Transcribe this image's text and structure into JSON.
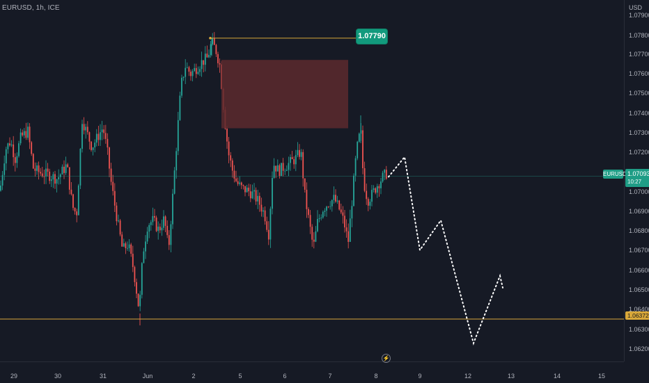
{
  "header": {
    "symbol_title": "EURUSD, 1h, ICE",
    "currency": "USD"
  },
  "price_axis": {
    "ticks": [
      "1.07900",
      "1.07800",
      "1.07700",
      "1.07600",
      "1.07500",
      "1.07400",
      "1.07300",
      "1.07200",
      "1.07000",
      "1.06900",
      "1.06800",
      "1.06700",
      "1.06600",
      "1.06500",
      "1.06400",
      "1.06300",
      "1.06200"
    ]
  },
  "time_axis": {
    "ticks": [
      "29",
      "30",
      "31",
      "Jun",
      "2",
      "5",
      "6",
      "7",
      "8",
      "9",
      "12",
      "13",
      "14",
      "15"
    ]
  },
  "labels": {
    "high_callout": "1.07790",
    "symbol_tag": "EURUSD",
    "last_price": "1.07093",
    "countdown": "10:27",
    "support_price": "1.06372"
  },
  "colors": {
    "background": "#161a25",
    "up_candle": "#26a69a",
    "down_candle": "#ef5350",
    "support_line": "#d9a83a",
    "supply_zone": "#5c2a2e",
    "projection": "#ffffff"
  },
  "icons": {
    "scroll_to_realtime": "lightning-icon"
  },
  "chart_data": {
    "type": "candlestick",
    "title": "EURUSD, 1h, ICE",
    "ylim": [
      1.0617,
      1.0795
    ],
    "x_categories": [
      "29",
      "30",
      "31",
      "Jun",
      "2",
      "5",
      "6",
      "7",
      "8",
      "9",
      "12",
      "13",
      "14",
      "15"
    ],
    "last_price": 1.07093,
    "high_marker": 1.0779,
    "support_level": 1.06372,
    "supply_zone": {
      "price_top": 1.0768,
      "price_bottom": 1.07335
    },
    "grid": false,
    "projection_path": [
      {
        "x": "8",
        "y": 1.0709
      },
      {
        "x": "9",
        "y": 1.0719
      },
      {
        "x": "9",
        "y": 1.0672
      },
      {
        "x": "9",
        "y": 1.0687
      },
      {
        "x": "12",
        "y": 1.0625
      },
      {
        "x": "13",
        "y": 1.0659
      },
      {
        "x": "13",
        "y": 1.0653
      }
    ]
  }
}
